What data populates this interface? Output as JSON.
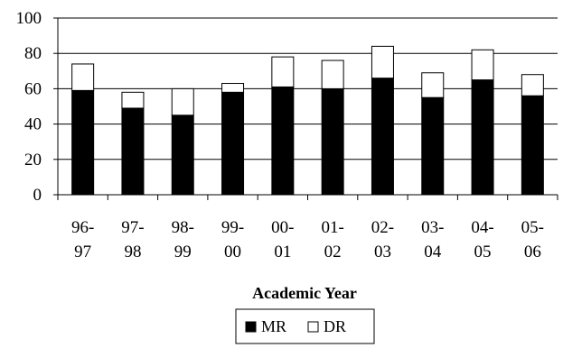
{
  "chart_data": {
    "type": "bar",
    "stacked": true,
    "categories": [
      [
        "96-",
        "97"
      ],
      [
        "97-",
        "98"
      ],
      [
        "98-",
        "99"
      ],
      [
        "99-",
        "00"
      ],
      [
        "00-",
        "01"
      ],
      [
        "01-",
        "02"
      ],
      [
        "02-",
        "03"
      ],
      [
        "03-",
        "04"
      ],
      [
        "04-",
        "05"
      ],
      [
        "05-",
        "06"
      ]
    ],
    "series": [
      {
        "name": "MR",
        "color": "#000000",
        "values": [
          59,
          49,
          45,
          58,
          61,
          60,
          66,
          55,
          65,
          56
        ]
      },
      {
        "name": "DR",
        "color": "#ffffff",
        "values": [
          15,
          9,
          15,
          5,
          17,
          16,
          18,
          14,
          17,
          12
        ]
      }
    ],
    "xlabel": "Academic Year",
    "ylabel": "",
    "title": "",
    "ylim": [
      0,
      100
    ],
    "yticks": [
      "0",
      "20",
      "40",
      "60",
      "80",
      "100"
    ],
    "grid": "horizontal",
    "legend": {
      "position": "bottom",
      "entries": [
        "MR",
        "DR"
      ]
    }
  }
}
